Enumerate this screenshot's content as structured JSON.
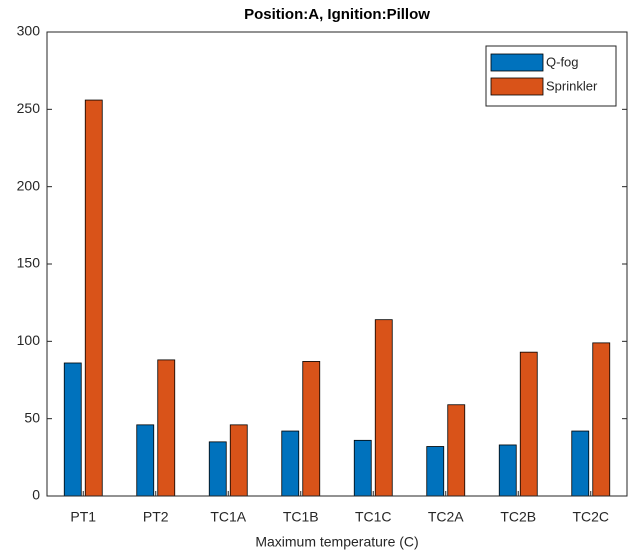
{
  "chart_data": {
    "type": "bar",
    "title": "Position:A, Ignition:Pillow",
    "x_label": "Maximum temperature (C)",
    "categories": [
      "PT1",
      "PT2",
      "TC1A",
      "TC1B",
      "TC1C",
      "TC2A",
      "TC2B",
      "TC2C"
    ],
    "series": [
      {
        "name": "Q-fog",
        "color": "#0072BD",
        "values": [
          86,
          46,
          35,
          42,
          36,
          32,
          33,
          42
        ]
      },
      {
        "name": "Sprinkler",
        "color": "#D95319",
        "values": [
          256,
          88,
          46,
          87,
          114,
          59,
          93,
          99
        ]
      }
    ],
    "ylim": [
      0,
      300
    ],
    "yticks": [
      0,
      50,
      100,
      150,
      200,
      250,
      300
    ],
    "grid": false,
    "legend": "upper right"
  }
}
